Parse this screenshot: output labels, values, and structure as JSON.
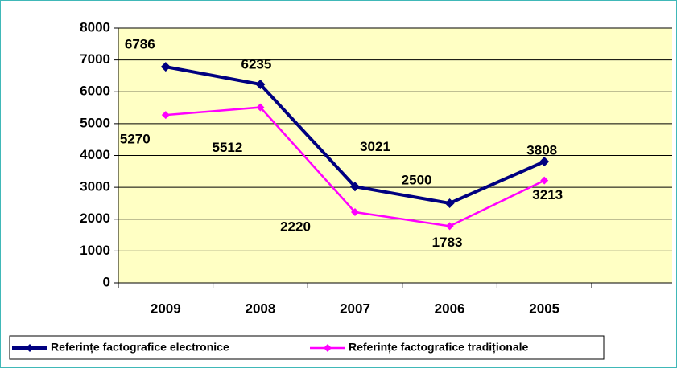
{
  "chart_data": {
    "type": "line",
    "categories": [
      "2009",
      "2008",
      "2007",
      "2006",
      "2005"
    ],
    "series": [
      {
        "name": "Referințe factografice electronice",
        "color": "#000080",
        "values": [
          6786,
          6235,
          3021,
          2500,
          3808
        ]
      },
      {
        "name": "Referințe factografice tradiționale",
        "color": "#ff00ff",
        "values": [
          5270,
          5512,
          2220,
          1783,
          3213
        ]
      }
    ],
    "ylim": [
      0,
      8000
    ],
    "yticks": [
      0,
      1000,
      2000,
      3000,
      4000,
      5000,
      6000,
      7000,
      8000
    ],
    "grid": true,
    "plot_background": "#ffffc4",
    "legend": "bottom"
  }
}
